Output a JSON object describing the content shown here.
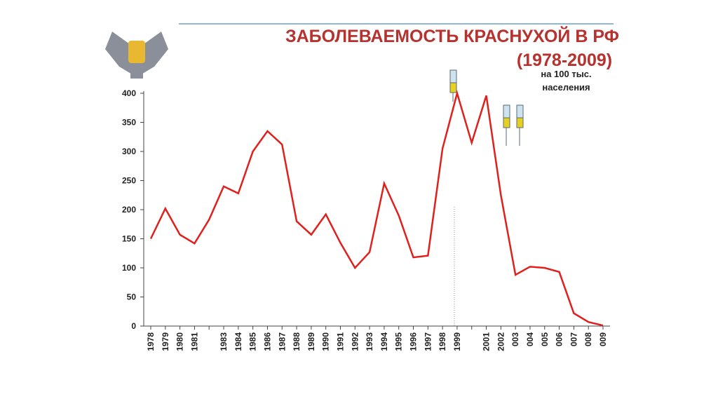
{
  "chart_data": {
    "type": "line",
    "title": "ЗАБОЛЕВАЕМОСТЬ КРАСНУХОЙ В РФ",
    "subtitle": "(1978-2009)",
    "y_label": "на 100 тыс. населения",
    "categories": [
      "1978",
      "1979",
      "1980",
      "1981",
      null,
      "1983",
      "1984",
      "1985",
      "1986",
      "1987",
      "1988",
      "1989",
      "1990",
      "1991",
      "1992",
      "1993",
      "1994",
      "1995",
      "1996",
      "1997",
      "1998",
      "1999",
      null,
      "2001",
      "2002",
      "003",
      "004",
      "005",
      "006",
      "007",
      "008",
      "009"
    ],
    "values": [
      150,
      202,
      157,
      142,
      183,
      240,
      228,
      300,
      335,
      312,
      180,
      157,
      192,
      143,
      100,
      127,
      245,
      190,
      118,
      121,
      305,
      400,
      315,
      396,
      225,
      88,
      102,
      100,
      93,
      22,
      7,
      1
    ],
    "color": "#e0201c",
    "ylim": [
      0,
      400
    ],
    "yticks": [
      0,
      50,
      100,
      150,
      200,
      250,
      300,
      350,
      400
    ]
  }
}
